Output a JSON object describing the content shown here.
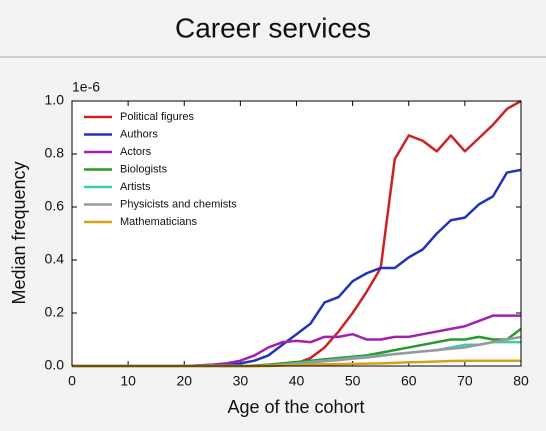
{
  "slide_title": "Career services",
  "chart_data": {
    "type": "line",
    "xlabel": "Age of the cohort",
    "ylabel": "Median frequency",
    "y_offset_label": "1e-6",
    "x": [
      0,
      5,
      10,
      15,
      20,
      25,
      27.5,
      30,
      32.5,
      35,
      37.5,
      40,
      42.5,
      45,
      47.5,
      50,
      52.5,
      55,
      57.5,
      60,
      62.5,
      65,
      67.5,
      70,
      72.5,
      75,
      77.5,
      80
    ],
    "series": [
      {
        "name": "Political figures",
        "color": "#cc2222",
        "values": [
          0,
          0,
          0,
          0,
          0,
          0,
          0,
          0,
          0,
          0.002,
          0.005,
          0.01,
          0.03,
          0.07,
          0.13,
          0.2,
          0.28,
          0.37,
          0.78,
          0.87,
          0.85,
          0.81,
          0.87,
          0.81,
          0.86,
          0.91,
          0.97,
          1.0
        ]
      },
      {
        "name": "Authors",
        "color": "#2233bb",
        "values": [
          0,
          0,
          0,
          0,
          0,
          0.002,
          0.005,
          0.01,
          0.02,
          0.04,
          0.08,
          0.12,
          0.16,
          0.24,
          0.26,
          0.32,
          0.35,
          0.37,
          0.37,
          0.41,
          0.44,
          0.5,
          0.55,
          0.56,
          0.61,
          0.64,
          0.73,
          0.74
        ]
      },
      {
        "name": "Actors",
        "color": "#a020b0",
        "values": [
          0,
          0,
          0,
          0,
          0,
          0.005,
          0.01,
          0.02,
          0.04,
          0.07,
          0.09,
          0.095,
          0.09,
          0.11,
          0.11,
          0.12,
          0.1,
          0.1,
          0.11,
          0.11,
          0.12,
          0.13,
          0.14,
          0.15,
          0.17,
          0.19,
          0.19,
          0.19
        ]
      },
      {
        "name": "Biologists",
        "color": "#2a9a2a",
        "values": [
          0,
          0,
          0,
          0,
          0,
          0,
          0,
          0,
          0.002,
          0.005,
          0.01,
          0.015,
          0.02,
          0.025,
          0.03,
          0.035,
          0.04,
          0.05,
          0.06,
          0.07,
          0.08,
          0.09,
          0.1,
          0.1,
          0.11,
          0.1,
          0.1,
          0.14
        ]
      },
      {
        "name": "Artists",
        "color": "#40c8b8",
        "values": [
          0,
          0,
          0,
          0,
          0,
          0,
          0,
          0,
          0,
          0.002,
          0.005,
          0.01,
          0.015,
          0.02,
          0.025,
          0.03,
          0.035,
          0.04,
          0.045,
          0.05,
          0.055,
          0.06,
          0.07,
          0.08,
          0.08,
          0.09,
          0.09,
          0.09
        ]
      },
      {
        "name": "Physicists and chemists",
        "color": "#999999",
        "values": [
          0,
          0,
          0,
          0,
          0,
          0,
          0,
          0,
          0,
          0.002,
          0.005,
          0.008,
          0.012,
          0.018,
          0.022,
          0.028,
          0.032,
          0.038,
          0.045,
          0.05,
          0.055,
          0.06,
          0.065,
          0.07,
          0.08,
          0.09,
          0.1,
          0.11
        ]
      },
      {
        "name": "Mathematicians",
        "color": "#d4a017",
        "values": [
          0,
          0,
          0,
          0,
          0,
          0,
          0,
          0,
          0,
          0,
          0.002,
          0.004,
          0.005,
          0.006,
          0.007,
          0.008,
          0.009,
          0.01,
          0.012,
          0.014,
          0.015,
          0.017,
          0.019,
          0.02,
          0.02,
          0.02,
          0.02,
          0.02
        ]
      }
    ],
    "xlim": [
      0,
      80
    ],
    "xticks": [
      0,
      10,
      20,
      30,
      40,
      50,
      60,
      70,
      80
    ],
    "ylim": [
      0,
      1
    ],
    "yticks": [
      {
        "value": 0,
        "label": "0.0"
      },
      0.2,
      0.4,
      0.6,
      0.8,
      {
        "value": 1,
        "label": "1.0"
      }
    ],
    "legend": "upper-left"
  }
}
